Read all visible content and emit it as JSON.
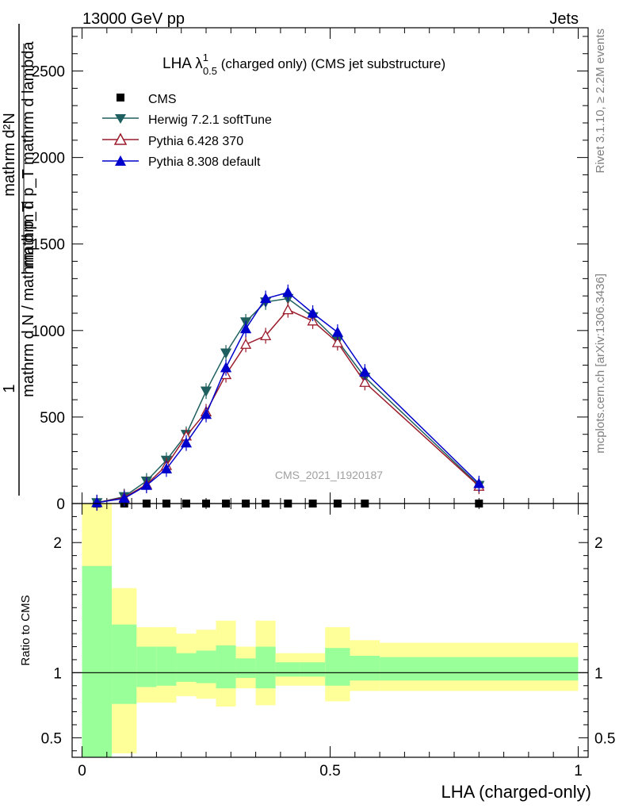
{
  "header": {
    "left": "13000 GeV pp",
    "right": "Jets"
  },
  "side_labels": {
    "rivet": "Rivet 3.1.10, ≥ 2.2M events",
    "mcplots": "mcplots.cern.ch [arXiv:1306.3436]"
  },
  "plot_title": {
    "main": "LHA λ",
    "sup": "1",
    "sub": "0.5",
    "rest": " (charged only) (CMS jet substructure)"
  },
  "ylabel_main": {
    "numerator": "mathrm d²N",
    "denominator": "mathrm d p_T mathrm d lambda",
    "prefix": "1",
    "prefix_den": "mathrm d N / mathrm d p_T"
  },
  "ylabel_ratio": "Ratio to CMS",
  "xlabel": "LHA (charged-only)",
  "watermark": "CMS_2021_I1920187",
  "colors": {
    "herwig": "#1f5f5f",
    "pythia6": "#9b1b2b",
    "pythia8": "#0000cc",
    "band_inner": "#99ff99",
    "band_outer": "#ffff99"
  },
  "chart_data": [
    {
      "type": "line",
      "xlim": [
        -0.02,
        1.02
      ],
      "ylim": [
        0,
        2750
      ],
      "y_ticks": [
        0,
        500,
        1000,
        1500,
        2000,
        2500
      ],
      "y_tick_labels": [
        "0",
        "500",
        "1000",
        "1500",
        "2000",
        "2500"
      ],
      "legend_position": "top-left",
      "series": [
        {
          "name": "CMS",
          "marker": "square",
          "x": [
            0.03,
            0.085,
            0.13,
            0.17,
            0.21,
            0.25,
            0.29,
            0.33,
            0.37,
            0.415,
            0.465,
            0.515,
            0.57,
            0.8
          ],
          "y": [
            0,
            0,
            0,
            0,
            0,
            0,
            0,
            0,
            0,
            0,
            0,
            0,
            0,
            0
          ]
        },
        {
          "name": "Herwig 7.2.1 softTune",
          "marker": "triangle-down",
          "x": [
            0.03,
            0.085,
            0.13,
            0.17,
            0.21,
            0.25,
            0.29,
            0.33,
            0.37,
            0.415,
            0.465,
            0.515,
            0.57,
            0.8
          ],
          "y": [
            5,
            40,
            130,
            250,
            400,
            650,
            870,
            1050,
            1165,
            1185,
            1080,
            940,
            730,
            105
          ]
        },
        {
          "name": "Pythia 6.428 370",
          "marker": "triangle-open",
          "x": [
            0.03,
            0.085,
            0.13,
            0.17,
            0.21,
            0.25,
            0.29,
            0.33,
            0.37,
            0.415,
            0.465,
            0.515,
            0.57,
            0.8
          ],
          "y": [
            5,
            35,
            110,
            220,
            390,
            530,
            745,
            920,
            970,
            1120,
            1055,
            930,
            700,
            100
          ]
        },
        {
          "name": "Pythia 8.308 default",
          "marker": "triangle-up",
          "x": [
            0.03,
            0.085,
            0.13,
            0.17,
            0.21,
            0.25,
            0.29,
            0.33,
            0.37,
            0.415,
            0.465,
            0.515,
            0.57,
            0.8
          ],
          "y": [
            5,
            30,
            105,
            200,
            350,
            515,
            785,
            1010,
            1185,
            1220,
            1100,
            990,
            760,
            115
          ]
        }
      ]
    },
    {
      "type": "area",
      "xlim": [
        -0.02,
        1.02
      ],
      "ylim": [
        0.35,
        2.3
      ],
      "y_ticks": [
        0.5,
        1,
        2
      ],
      "y_tick_labels": [
        "0.5",
        "1",
        "2"
      ],
      "x_ticks": [
        0,
        0.5,
        1
      ],
      "x_tick_labels": [
        "0",
        "0.5",
        "1"
      ],
      "bins": [
        0.0,
        0.06,
        0.11,
        0.15,
        0.19,
        0.23,
        0.27,
        0.31,
        0.35,
        0.39,
        0.44,
        0.49,
        0.54,
        0.6,
        1.0
      ],
      "outer_upper": [
        2.3,
        1.65,
        1.35,
        1.35,
        1.3,
        1.33,
        1.4,
        1.2,
        1.4,
        1.15,
        1.15,
        1.35,
        1.25,
        1.23
      ],
      "outer_lower": [
        0.35,
        0.38,
        0.77,
        0.77,
        0.82,
        0.8,
        0.74,
        0.88,
        0.75,
        0.9,
        0.9,
        0.78,
        0.86,
        0.86
      ],
      "inner_upper": [
        1.82,
        1.37,
        1.2,
        1.2,
        1.15,
        1.17,
        1.21,
        1.11,
        1.2,
        1.08,
        1.08,
        1.19,
        1.13,
        1.12
      ],
      "inner_lower": [
        0.35,
        0.76,
        0.89,
        0.9,
        0.93,
        0.92,
        0.88,
        0.96,
        0.88,
        0.97,
        0.97,
        0.9,
        0.94,
        0.94
      ]
    }
  ]
}
